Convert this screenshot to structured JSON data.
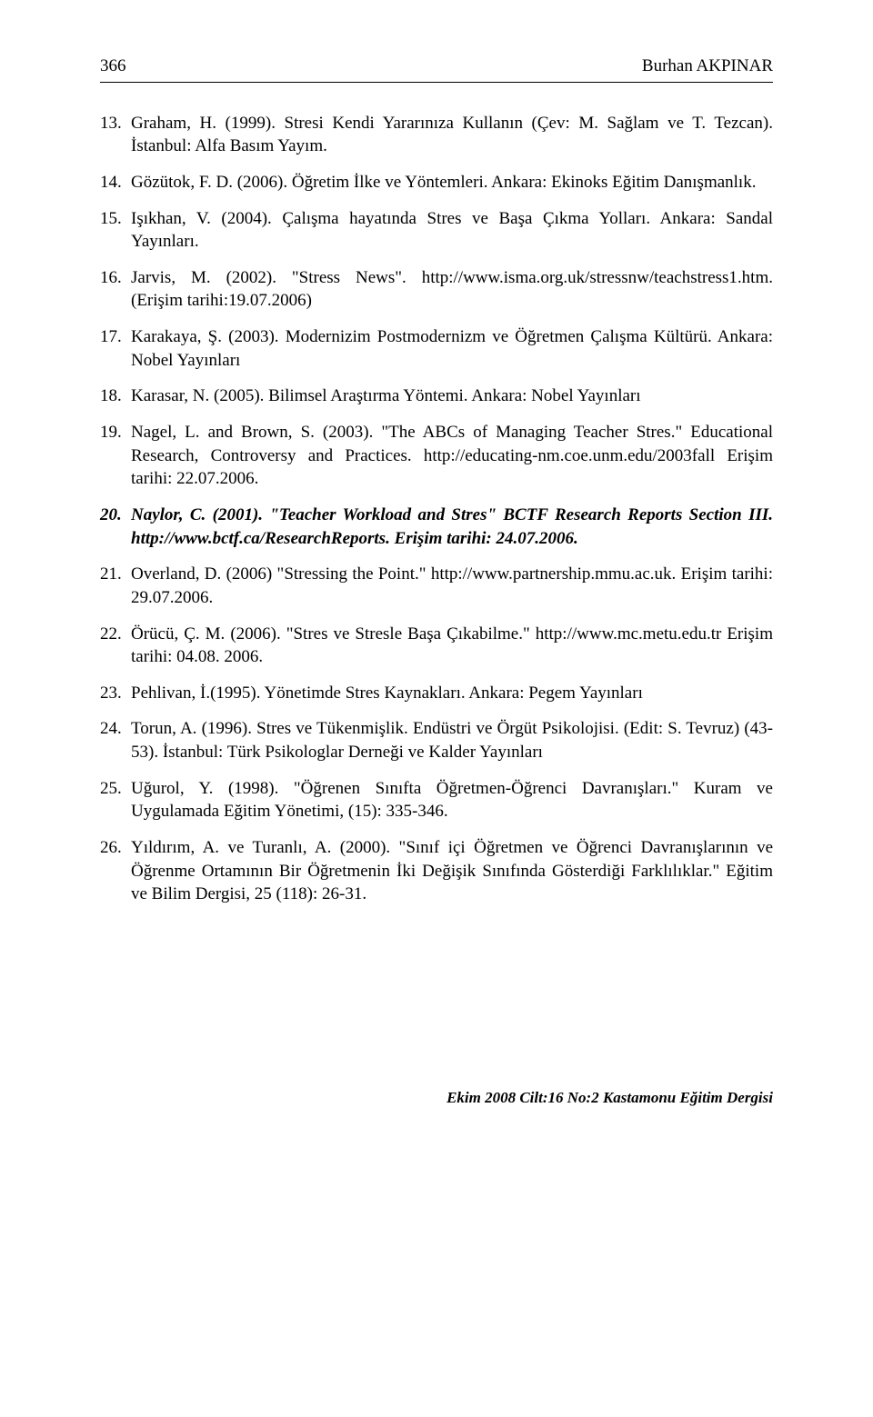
{
  "header": {
    "page": "366",
    "author": "Burhan AKPINAR"
  },
  "refs": [
    {
      "n": "13.",
      "t": "Graham, H. (1999). Stresi Kendi Yararınıza Kullanın (Çev: M. Sağlam ve T. Tezcan). İstanbul: Alfa Basım Yayım."
    },
    {
      "n": "14.",
      "t": "Gözütok, F. D. (2006). Öğretim İlke ve Yöntemleri. Ankara: Ekinoks Eğitim Danışmanlık."
    },
    {
      "n": "15.",
      "t": "Işıkhan, V. (2004). Çalışma hayatında Stres ve Başa Çıkma Yolları. Ankara: Sandal Yayınları."
    },
    {
      "n": "16.",
      "t": "Jarvis, M. (2002). \"Stress News\". http://www.isma.org.uk/stressnw/teachstress1.htm. (Erişim tarihi:19.07.2006)"
    },
    {
      "n": "17.",
      "t": "Karakaya, Ş. (2003). Modernizim Postmodernizm ve Öğretmen Çalışma Kültürü. Ankara: Nobel Yayınları"
    },
    {
      "n": "18.",
      "t": "Karasar, N. (2005). Bilimsel Araştırma Yöntemi. Ankara: Nobel Yayınları"
    },
    {
      "n": "19.",
      "t": "Nagel, L. and Brown, S. (2003). \"The ABCs of Managing Teacher Stres.\" Educational Research, Controversy and Practices. http://educating-nm.coe.unm.edu/2003fall Erişim tarihi: 22.07.2006."
    },
    {
      "n": "20.",
      "t": "Naylor, C. (2001). \"Teacher Workload and Stres\" BCTF Research Reports Section III. http://www.bctf.ca/ResearchReports. Erişim tarihi: 24.07.2006."
    },
    {
      "n": "21.",
      "t": "Overland, D. (2006) \"Stressing the Point.\" http://www.partnership.mmu.ac.uk. Erişim tarihi: 29.07.2006."
    },
    {
      "n": "22.",
      "t": "Örücü, Ç. M. (2006). \"Stres ve Stresle Başa Çıkabilme.\" http://www.mc.metu.edu.tr Erişim tarihi: 04.08. 2006."
    },
    {
      "n": "23.",
      "t": "Pehlivan, İ.(1995). Yönetimde Stres Kaynakları. Ankara: Pegem Yayınları"
    },
    {
      "n": "24.",
      "t": "Torun, A. (1996). Stres ve Tükenmişlik. Endüstri ve Örgüt Psikolojisi. (Edit: S. Tevruz) (43-53). İstanbul:  Türk Psikologlar Derneği ve Kalder Yayınları"
    },
    {
      "n": "25.",
      "t": "Uğurol, Y. (1998). \"Öğrenen Sınıfta Öğretmen-Öğrenci Davranışları.\" Kuram ve Uygulamada Eğitim Yönetimi, (15): 335-346."
    },
    {
      "n": "26.",
      "t": "Yıldırım, A. ve Turanlı, A. (2000). \"Sınıf içi Öğretmen ve Öğrenci Davranışlarının ve Öğrenme Ortamının Bir Öğretmenin İki Değişik Sınıfında Gösterdiği Farklılıklar.\" Eğitim ve Bilim Dergisi, 25 (118): 26-31."
    }
  ],
  "bold_index": 7,
  "footer": "Ekim 2008   Cilt:16   No:2   Kastamonu Eğitim Dergisi"
}
